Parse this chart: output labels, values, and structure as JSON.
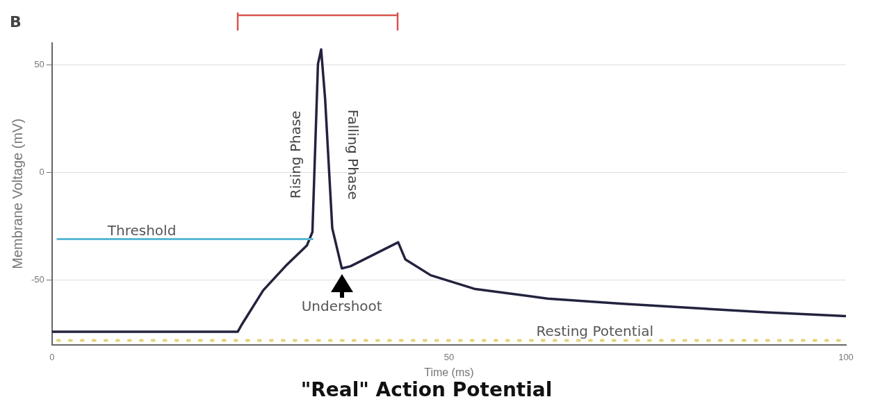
{
  "chart_data": {
    "type": "line",
    "title": "\"Real\" Action Potential",
    "xlabel": "Time (ms)",
    "ylabel": "Membrane Voltage (mV)",
    "xlim": [
      0,
      100
    ],
    "xticks": [
      0,
      50,
      100
    ],
    "ylim": [
      -80,
      60
    ],
    "yticks": [
      -50,
      0,
      50
    ],
    "grid": "y",
    "legend": false,
    "marker": "none",
    "line_style": "solid",
    "series": [
      {
        "color": "#23233f",
        "x": [
          0,
          23.4,
          23.9,
          26.6,
          29.4,
          32.1,
          32.8,
          33.5,
          33.9,
          34.4,
          35.3,
          36.5,
          37.6,
          43.6,
          44.5,
          47.7,
          53.2,
          62.4,
          71.6,
          80.7,
          89.9,
          100
        ],
        "values": [
          -74,
          -74,
          -70.7,
          -54.8,
          -43.6,
          -34,
          -27.7,
          50.3,
          57,
          34,
          -26,
          -44.6,
          -43.6,
          -32.5,
          -40.4,
          -47.8,
          -54.1,
          -58.6,
          -61,
          -63,
          -65,
          -66.8
        ]
      }
    ],
    "ref_lines": [
      {
        "axis": "y",
        "value": -31,
        "label": "Threshold",
        "color": "#5bb8d4",
        "line_style": "solid"
      },
      {
        "axis": "y",
        "value": -78,
        "label": "Resting Potential",
        "color": "#e3d27a",
        "line_style": "dotted"
      }
    ],
    "annotations": [
      "B",
      "Rising Phase",
      "Falling Phase",
      {
        "text": "Undershoot",
        "x": 36.5,
        "y": -44.6
      }
    ]
  }
}
